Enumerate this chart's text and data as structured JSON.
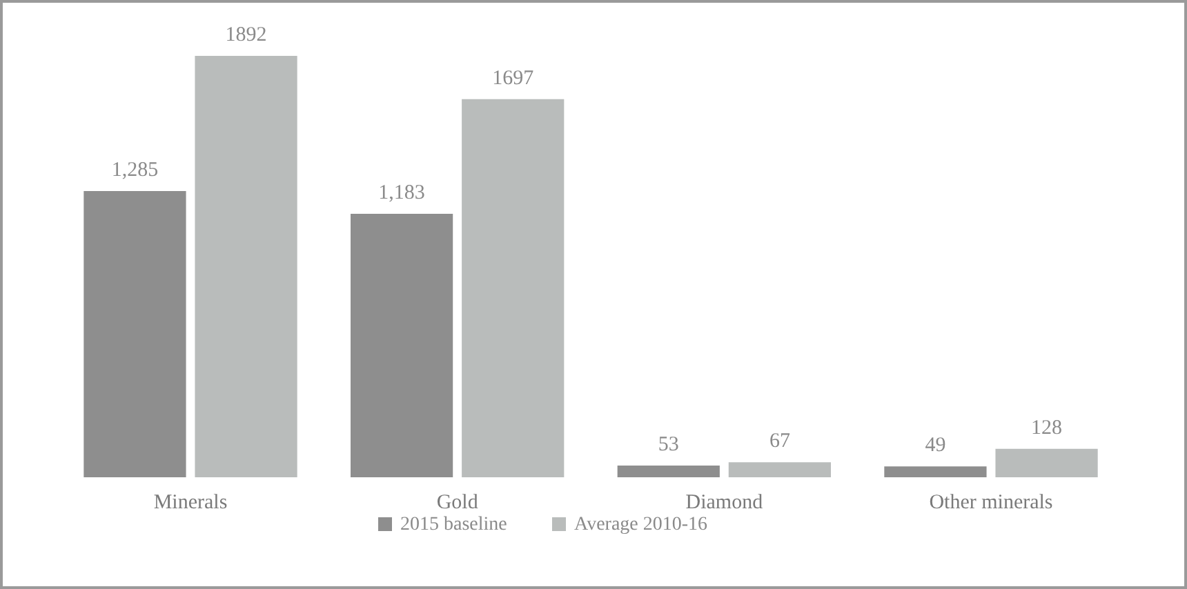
{
  "chart_data": {
    "type": "bar",
    "categories": [
      "Minerals",
      "Gold",
      "Diamond",
      "Other minerals"
    ],
    "series": [
      {
        "name": "2015 baseline",
        "color": "#8e8e8e",
        "values": [
          1285,
          1183,
          53,
          49
        ],
        "value_labels": [
          "1,285",
          "1,183",
          "53",
          "49"
        ]
      },
      {
        "name": "Average 2010-16",
        "color": "#b9bcbb",
        "values": [
          1892,
          1697,
          67,
          128
        ],
        "value_labels": [
          "1892",
          "1697",
          "67",
          "128"
        ]
      }
    ],
    "legend": "bottom",
    "grid": false
  }
}
